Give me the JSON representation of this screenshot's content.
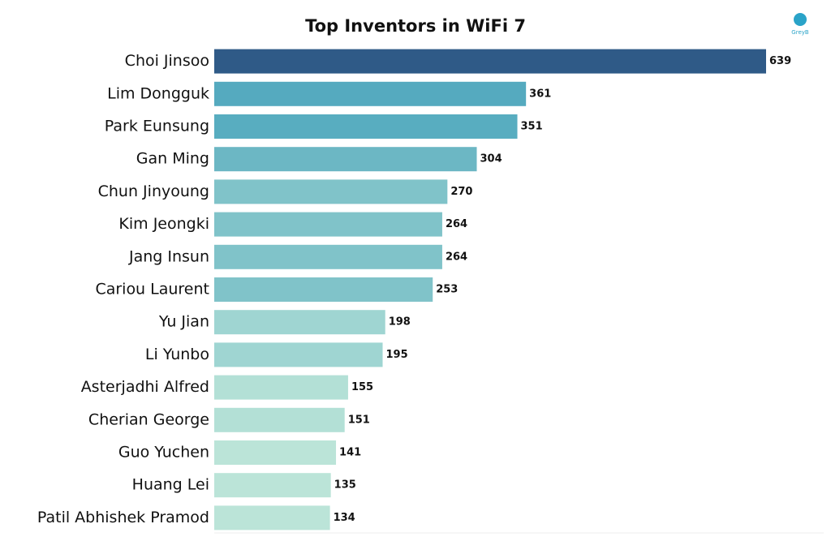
{
  "chart_data": {
    "type": "bar",
    "orientation": "horizontal",
    "title": "Top Inventors in WiFi 7",
    "logo": "GreyB",
    "categories": [
      "Choi Jinsoo",
      "Lim Dongguk",
      "Park Eunsung",
      "Gan Ming",
      "Chun Jinyoung",
      "Kim Jeongki",
      "Jang Insun",
      "Cariou Laurent",
      "Yu Jian",
      "Li Yunbo",
      "Asterjadhi Alfred",
      "Cherian George",
      "Guo Yuchen",
      "Huang Lei",
      "Patil Abhishek Pramod"
    ],
    "values": [
      639,
      361,
      351,
      304,
      270,
      264,
      264,
      253,
      198,
      195,
      155,
      151,
      141,
      135,
      134
    ],
    "colors": [
      "#2f5a87",
      "#55aabf",
      "#58adc0",
      "#6cb7c4",
      "#80c3c9",
      "#80c3c9",
      "#80c3c9",
      "#80c3c9",
      "#9fd5d2",
      "#9fd5d2",
      "#b3e0d6",
      "#b3e0d6",
      "#bbe4d8",
      "#bbe4d8",
      "#bbe4d8"
    ]
  }
}
